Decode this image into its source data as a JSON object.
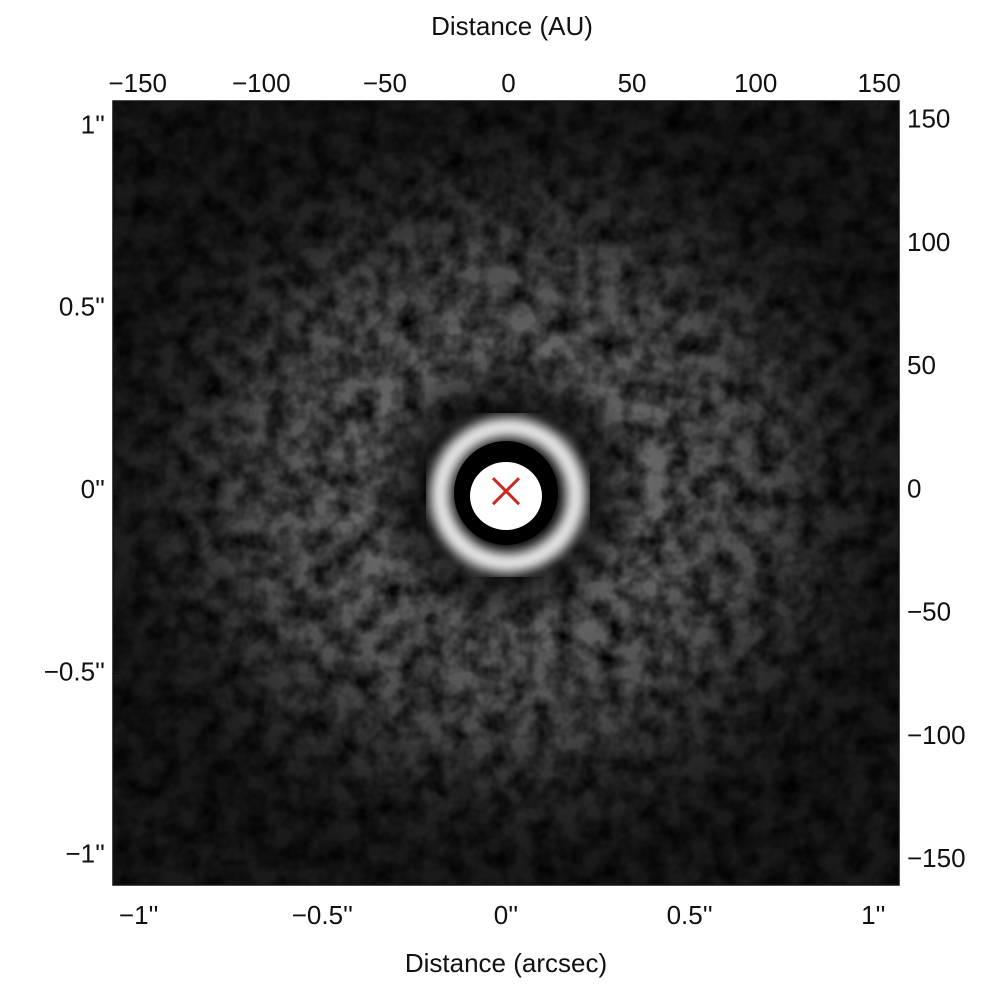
{
  "chart_data": {
    "type": "image",
    "x_label": "Distance (arcsec)",
    "x2_label": "Distance (AU)",
    "xlim": [
      -1.07,
      1.07
    ],
    "ylim": [
      -1.08,
      1.07
    ],
    "x2lim": [
      -160,
      158
    ],
    "y2lim": [
      -160,
      158
    ],
    "xticks": [
      {
        "value": -1,
        "label": "−1''"
      },
      {
        "value": -0.5,
        "label": "−0.5''"
      },
      {
        "value": 0,
        "label": "0''"
      },
      {
        "value": 0.5,
        "label": "0.5''"
      },
      {
        "value": 1,
        "label": "1''"
      }
    ],
    "yticks": [
      {
        "value": -1,
        "label": "−1''"
      },
      {
        "value": -0.5,
        "label": "−0.5''"
      },
      {
        "value": 0,
        "label": "0''"
      },
      {
        "value": 0.5,
        "label": "0.5''"
      },
      {
        "value": 1,
        "label": "1''"
      }
    ],
    "x2ticks": [
      {
        "value": -150,
        "label": "−150"
      },
      {
        "value": -100,
        "label": "−100"
      },
      {
        "value": -50,
        "label": "−50"
      },
      0,
      50,
      100,
      150
    ],
    "y2ticks": [
      {
        "value": -150,
        "label": "−150"
      },
      {
        "value": -100,
        "label": "−100"
      },
      {
        "value": -50,
        "label": "−50"
      },
      0,
      50,
      100,
      150
    ],
    "marker": {
      "x": 0,
      "y": 0,
      "color": "#cc2a1e"
    }
  }
}
